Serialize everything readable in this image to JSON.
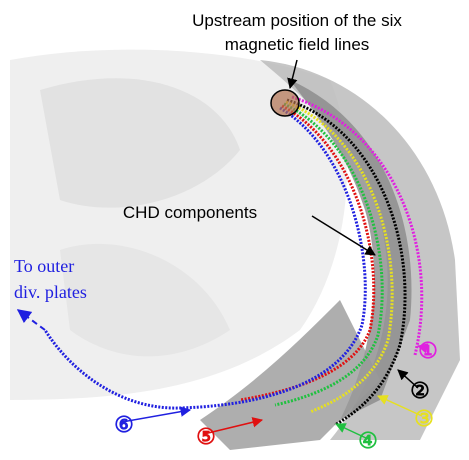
{
  "annotations": {
    "upstream": [
      "Upstream position of the six",
      "magnetic field lines"
    ],
    "chd": "CHD components",
    "outer": [
      "To outer",
      "div. plates"
    ]
  },
  "field_lines": [
    {
      "label": "①",
      "color": "#e020e0"
    },
    {
      "label": "②",
      "color": "#000000"
    },
    {
      "label": "③",
      "color": "#e6e020"
    },
    {
      "label": "④",
      "color": "#20c040"
    },
    {
      "label": "⑤",
      "color": "#e01010"
    },
    {
      "label": "⑥",
      "color": "#2020e0"
    }
  ]
}
